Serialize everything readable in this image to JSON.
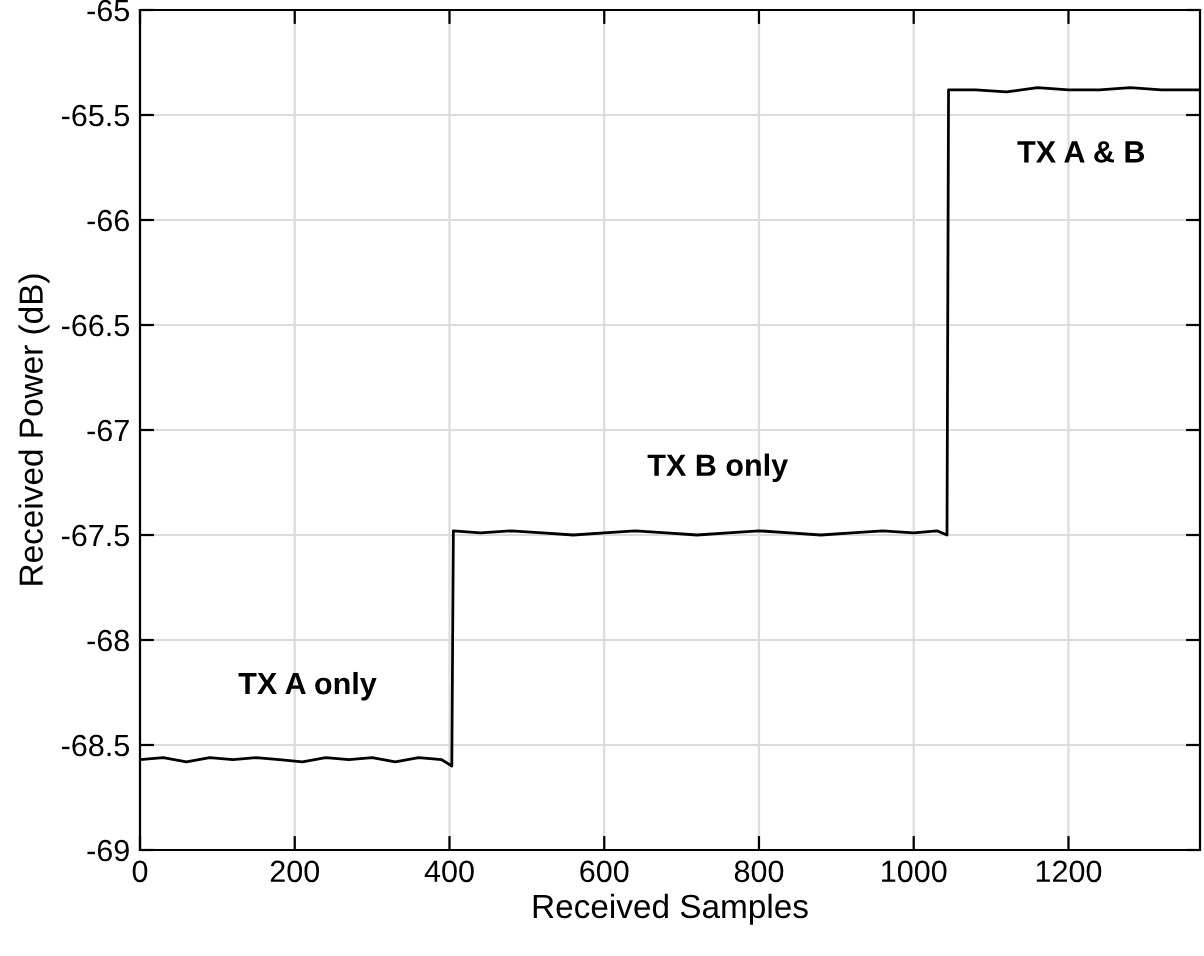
{
  "chart_data": {
    "type": "line",
    "xlabel": "Received Samples",
    "ylabel": "Received Power (dB)",
    "x": [
      0,
      30,
      60,
      90,
      120,
      150,
      180,
      210,
      240,
      270,
      300,
      330,
      360,
      390,
      403,
      405,
      440,
      480,
      520,
      560,
      600,
      640,
      680,
      720,
      760,
      800,
      840,
      880,
      920,
      960,
      1000,
      1030,
      1043,
      1045,
      1080,
      1120,
      1160,
      1200,
      1240,
      1280,
      1320,
      1370
    ],
    "series": [
      {
        "color": "#000000",
        "values": [
          -68.57,
          -68.56,
          -68.58,
          -68.56,
          -68.57,
          -68.56,
          -68.57,
          -68.58,
          -68.56,
          -68.57,
          -68.56,
          -68.58,
          -68.56,
          -68.57,
          -68.6,
          -67.48,
          -67.49,
          -67.48,
          -67.49,
          -67.5,
          -67.49,
          -67.48,
          -67.49,
          -67.5,
          -67.49,
          -67.48,
          -67.49,
          -67.5,
          -67.49,
          -67.48,
          -67.49,
          -67.48,
          -67.5,
          -65.38,
          -65.38,
          -65.39,
          -65.37,
          -65.38,
          -65.38,
          -65.37,
          -65.38,
          -65.38
        ]
      }
    ],
    "xlim": [
      0,
      1370
    ],
    "xticks": [
      0,
      200,
      400,
      600,
      800,
      1000,
      1200
    ],
    "ylim": [
      -69,
      -65
    ],
    "yticks": [
      -69,
      -68.5,
      -68,
      -67.5,
      -67,
      -66.5,
      -66,
      -65.5,
      -65
    ],
    "grid": true,
    "legend": false,
    "annotations": [
      "TX A only",
      "TX B only",
      "TX A & B"
    ]
  }
}
